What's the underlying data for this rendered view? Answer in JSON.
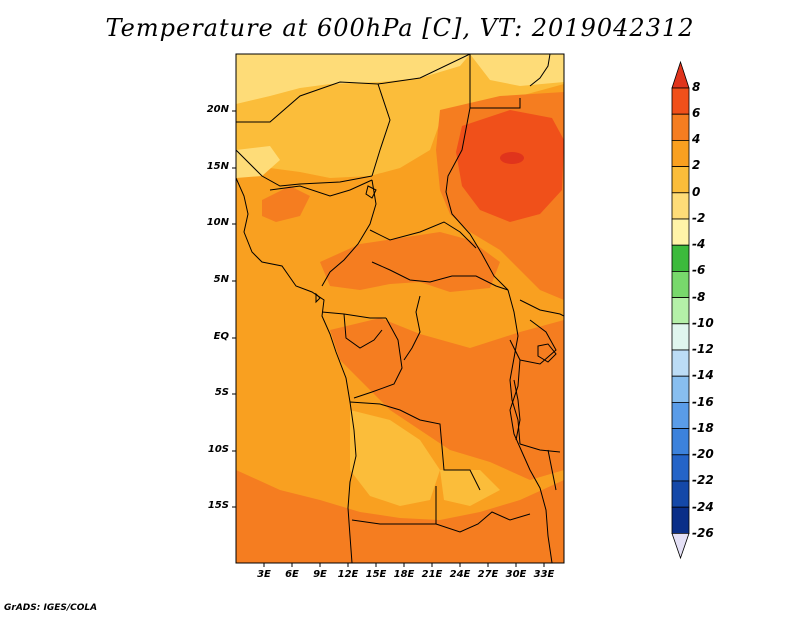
{
  "title": "Temperature at 600hPa [C], VT: 2019042312",
  "credit": "GrADS: IGES/COLA",
  "map": {
    "variable": "Temperature",
    "level": "600hPa",
    "units": "C",
    "valid_time": "2019042312",
    "lat_labels": [
      "20N",
      "15N",
      "10N",
      "5N",
      "EQ",
      "5S",
      "10S",
      "15S"
    ],
    "lon_labels": [
      "3E",
      "6E",
      "9E",
      "12E",
      "15E",
      "18E",
      "21E",
      "24E",
      "27E",
      "30E",
      "33E"
    ]
  },
  "colorbar": {
    "labels": [
      "8",
      "6",
      "4",
      "2",
      "0",
      "-2",
      "-4",
      "-6",
      "-8",
      "-10",
      "-12",
      "-14",
      "-16",
      "-18",
      "-20",
      "-22",
      "-24",
      "-26"
    ],
    "colors": {
      "above_8": "#e0341c",
      "6_8": "#f0501a",
      "4_6": "#f57d20",
      "2_4": "#f9a020",
      "0_2": "#fbbd3a",
      "m2_0": "#fedc78",
      "m4_m2": "#fff4a8",
      "m6_m4": "#3cba3c",
      "m8_m6": "#78d86c",
      "m10_m8": "#b4f0a8",
      "m12_m10": "#e0f6ee",
      "m14_m12": "#bcdcf6",
      "m16_m14": "#88beef",
      "m18_m16": "#5a9ce8",
      "m20_m18": "#3c82dc",
      "m22_m20": "#2464c8",
      "m24_m22": "#1448a8",
      "m26_m24": "#0a2e88",
      "below_m26": "#e4e0f6"
    }
  }
}
